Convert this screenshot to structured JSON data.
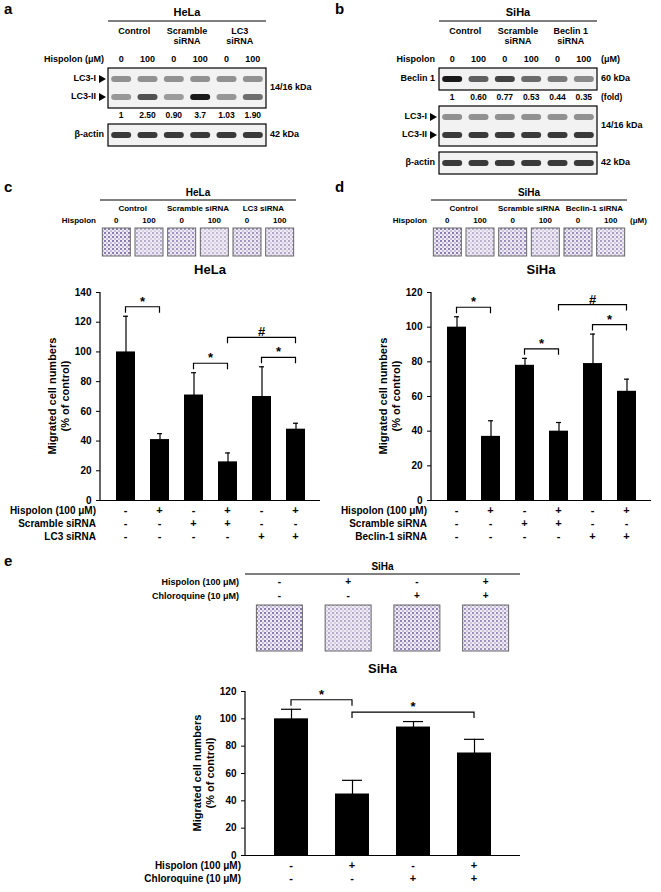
{
  "blots": [
    {
      "panel": "a",
      "cell_line": "HeLa",
      "groups": [
        [
          "Control"
        ],
        [
          "Scramble",
          "siRNA"
        ],
        [
          "LC3",
          "siRNA"
        ]
      ],
      "treatment": "Hispolon (μM)",
      "doses": [
        0,
        100,
        0,
        100,
        0,
        100
      ],
      "rows": [
        {
          "labels": [
            "LC3-I",
            "LC3-II"
          ],
          "arrows": true,
          "size": "14/16 kDa",
          "fold": [
            1,
            2.5,
            0.9,
            3.7,
            1.03,
            1.9
          ],
          "fold_labels": [
            "1",
            "2.50",
            "0.90",
            "3.7",
            "1.03",
            "1.90"
          ]
        },
        {
          "labels": [
            "β-actin"
          ],
          "size": "42 kDa"
        }
      ]
    },
    {
      "panel": "b",
      "cell_line": "SiHa",
      "groups": [
        [
          "Control"
        ],
        [
          "Scramble",
          "siRNA"
        ],
        [
          "Beclin 1",
          "siRNA"
        ]
      ],
      "treatment": "Hispolon",
      "unit": "(μM)",
      "doses": [
        0,
        100,
        0,
        100,
        0,
        100
      ],
      "rows": [
        {
          "labels": [
            "Beclin 1"
          ],
          "size": "60 kDa",
          "fold": [
            1,
            0.6,
            0.77,
            0.53,
            0.44,
            0.35
          ],
          "fold_labels": [
            "1",
            "0.60",
            "0.77",
            "0.53",
            "0.44",
            "0.35"
          ],
          "fold_unit": "(fold)"
        },
        {
          "labels": [
            "LC3-I",
            "LC3-II"
          ],
          "arrows": true,
          "size": "14/16 kDa"
        },
        {
          "labels": [
            "β-actin"
          ],
          "size": "42 kDa"
        }
      ]
    }
  ],
  "chart_data": [
    {
      "panel": "c",
      "type": "bar",
      "title": "HeLa",
      "y_label": [
        "Migrated cell numbers",
        "(% of control)"
      ],
      "categories": [
        null,
        null,
        null,
        null,
        null,
        null
      ],
      "values": [
        100,
        41,
        71,
        26,
        70,
        48
      ],
      "errors": [
        24,
        4,
        15,
        6,
        20,
        4
      ],
      "color": "#000000",
      "ylim": [
        0,
        140
      ],
      "yticks": [
        0,
        20,
        40,
        60,
        80,
        100,
        120,
        140
      ],
      "grid": false,
      "comparisons": [
        {
          "from": 0,
          "to": 1,
          "label": "*"
        },
        {
          "from": 2,
          "to": 3,
          "label": "*"
        },
        {
          "from": 4,
          "to": 5,
          "label": "*"
        },
        {
          "from": 3,
          "to": 5,
          "label": "#"
        }
      ],
      "conditions": [
        {
          "name": "Hispolon (100 μM)",
          "marks": [
            "-",
            "+",
            "-",
            "+",
            "-",
            "+"
          ]
        },
        {
          "name": "Scramble siRNA",
          "marks": [
            "-",
            "-",
            "+",
            "+",
            "-",
            "-"
          ]
        },
        {
          "name": "LC3 siRNA",
          "marks": [
            "-",
            "-",
            "-",
            "-",
            "+",
            "+"
          ]
        }
      ],
      "strip": {
        "header": "HeLa",
        "groups": [
          [
            "Control"
          ],
          [
            "Scramble siRNA"
          ],
          [
            "LC3 siRNA"
          ]
        ],
        "treatment": "Hispolon",
        "doses": [
          0,
          100,
          0,
          100,
          0,
          100
        ]
      }
    },
    {
      "panel": "d",
      "type": "bar",
      "title": "SiHa",
      "y_label": [
        "Migrated cell numbers",
        "(% of control)"
      ],
      "categories": [
        null,
        null,
        null,
        null,
        null,
        null
      ],
      "values": [
        100,
        37,
        78,
        40,
        79,
        63
      ],
      "errors": [
        6,
        9,
        4,
        5,
        17,
        7
      ],
      "color": "#000000",
      "ylim": [
        0,
        120
      ],
      "yticks": [
        0,
        20,
        40,
        60,
        80,
        100,
        120
      ],
      "grid": false,
      "comparisons": [
        {
          "from": 0,
          "to": 1,
          "label": "*"
        },
        {
          "from": 2,
          "to": 3,
          "label": "*"
        },
        {
          "from": 4,
          "to": 5,
          "label": "*"
        },
        {
          "from": 3,
          "to": 5,
          "label": "#"
        }
      ],
      "conditions": [
        {
          "name": "Hispolon (100 μM)",
          "marks": [
            "-",
            "+",
            "-",
            "+",
            "-",
            "+"
          ]
        },
        {
          "name": "Scramble siRNA",
          "marks": [
            "-",
            "-",
            "+",
            "+",
            "-",
            "-"
          ]
        },
        {
          "name": "Beclin-1 siRNA",
          "marks": [
            "-",
            "-",
            "-",
            "-",
            "+",
            "+"
          ]
        }
      ],
      "strip": {
        "header": "SiHa",
        "groups": [
          [
            "Control"
          ],
          [
            "Scramble siRNA"
          ],
          [
            "Beclin-1 siRNA"
          ]
        ],
        "treatment": "Hispolon",
        "unit": "(μM)",
        "doses": [
          0,
          100,
          0,
          100,
          0,
          100
        ]
      }
    },
    {
      "panel": "e",
      "type": "bar",
      "title": "SiHa",
      "y_label": [
        "Migrated cell numbers",
        "(% of control)"
      ],
      "categories": [
        null,
        null,
        null,
        null
      ],
      "values": [
        100,
        45,
        94,
        75
      ],
      "errors": [
        7,
        10,
        4,
        10
      ],
      "color": "#000000",
      "ylim": [
        0,
        120
      ],
      "yticks": [
        0,
        20,
        40,
        60,
        80,
        100,
        120
      ],
      "grid": false,
      "comparisons": [
        {
          "from": 0,
          "to": 1,
          "label": "*"
        },
        {
          "from": 1,
          "to": 3,
          "label": "*"
        }
      ],
      "conditions": [
        {
          "name": "Hispolon (100 μM)",
          "marks": [
            "-",
            "+",
            "-",
            "+"
          ]
        },
        {
          "name": "Chloroquine (10 μM)",
          "marks": [
            "-",
            "-",
            "+",
            "+"
          ]
        }
      ],
      "strip": {
        "header": "SiHa",
        "rows": [
          {
            "name": "Hispolon (100 μM)",
            "marks": [
              "-",
              "+",
              "-",
              "+"
            ]
          },
          {
            "name": "Chloroquine (10 μM)",
            "marks": [
              "-",
              "-",
              "+",
              "+"
            ]
          }
        ]
      }
    }
  ]
}
